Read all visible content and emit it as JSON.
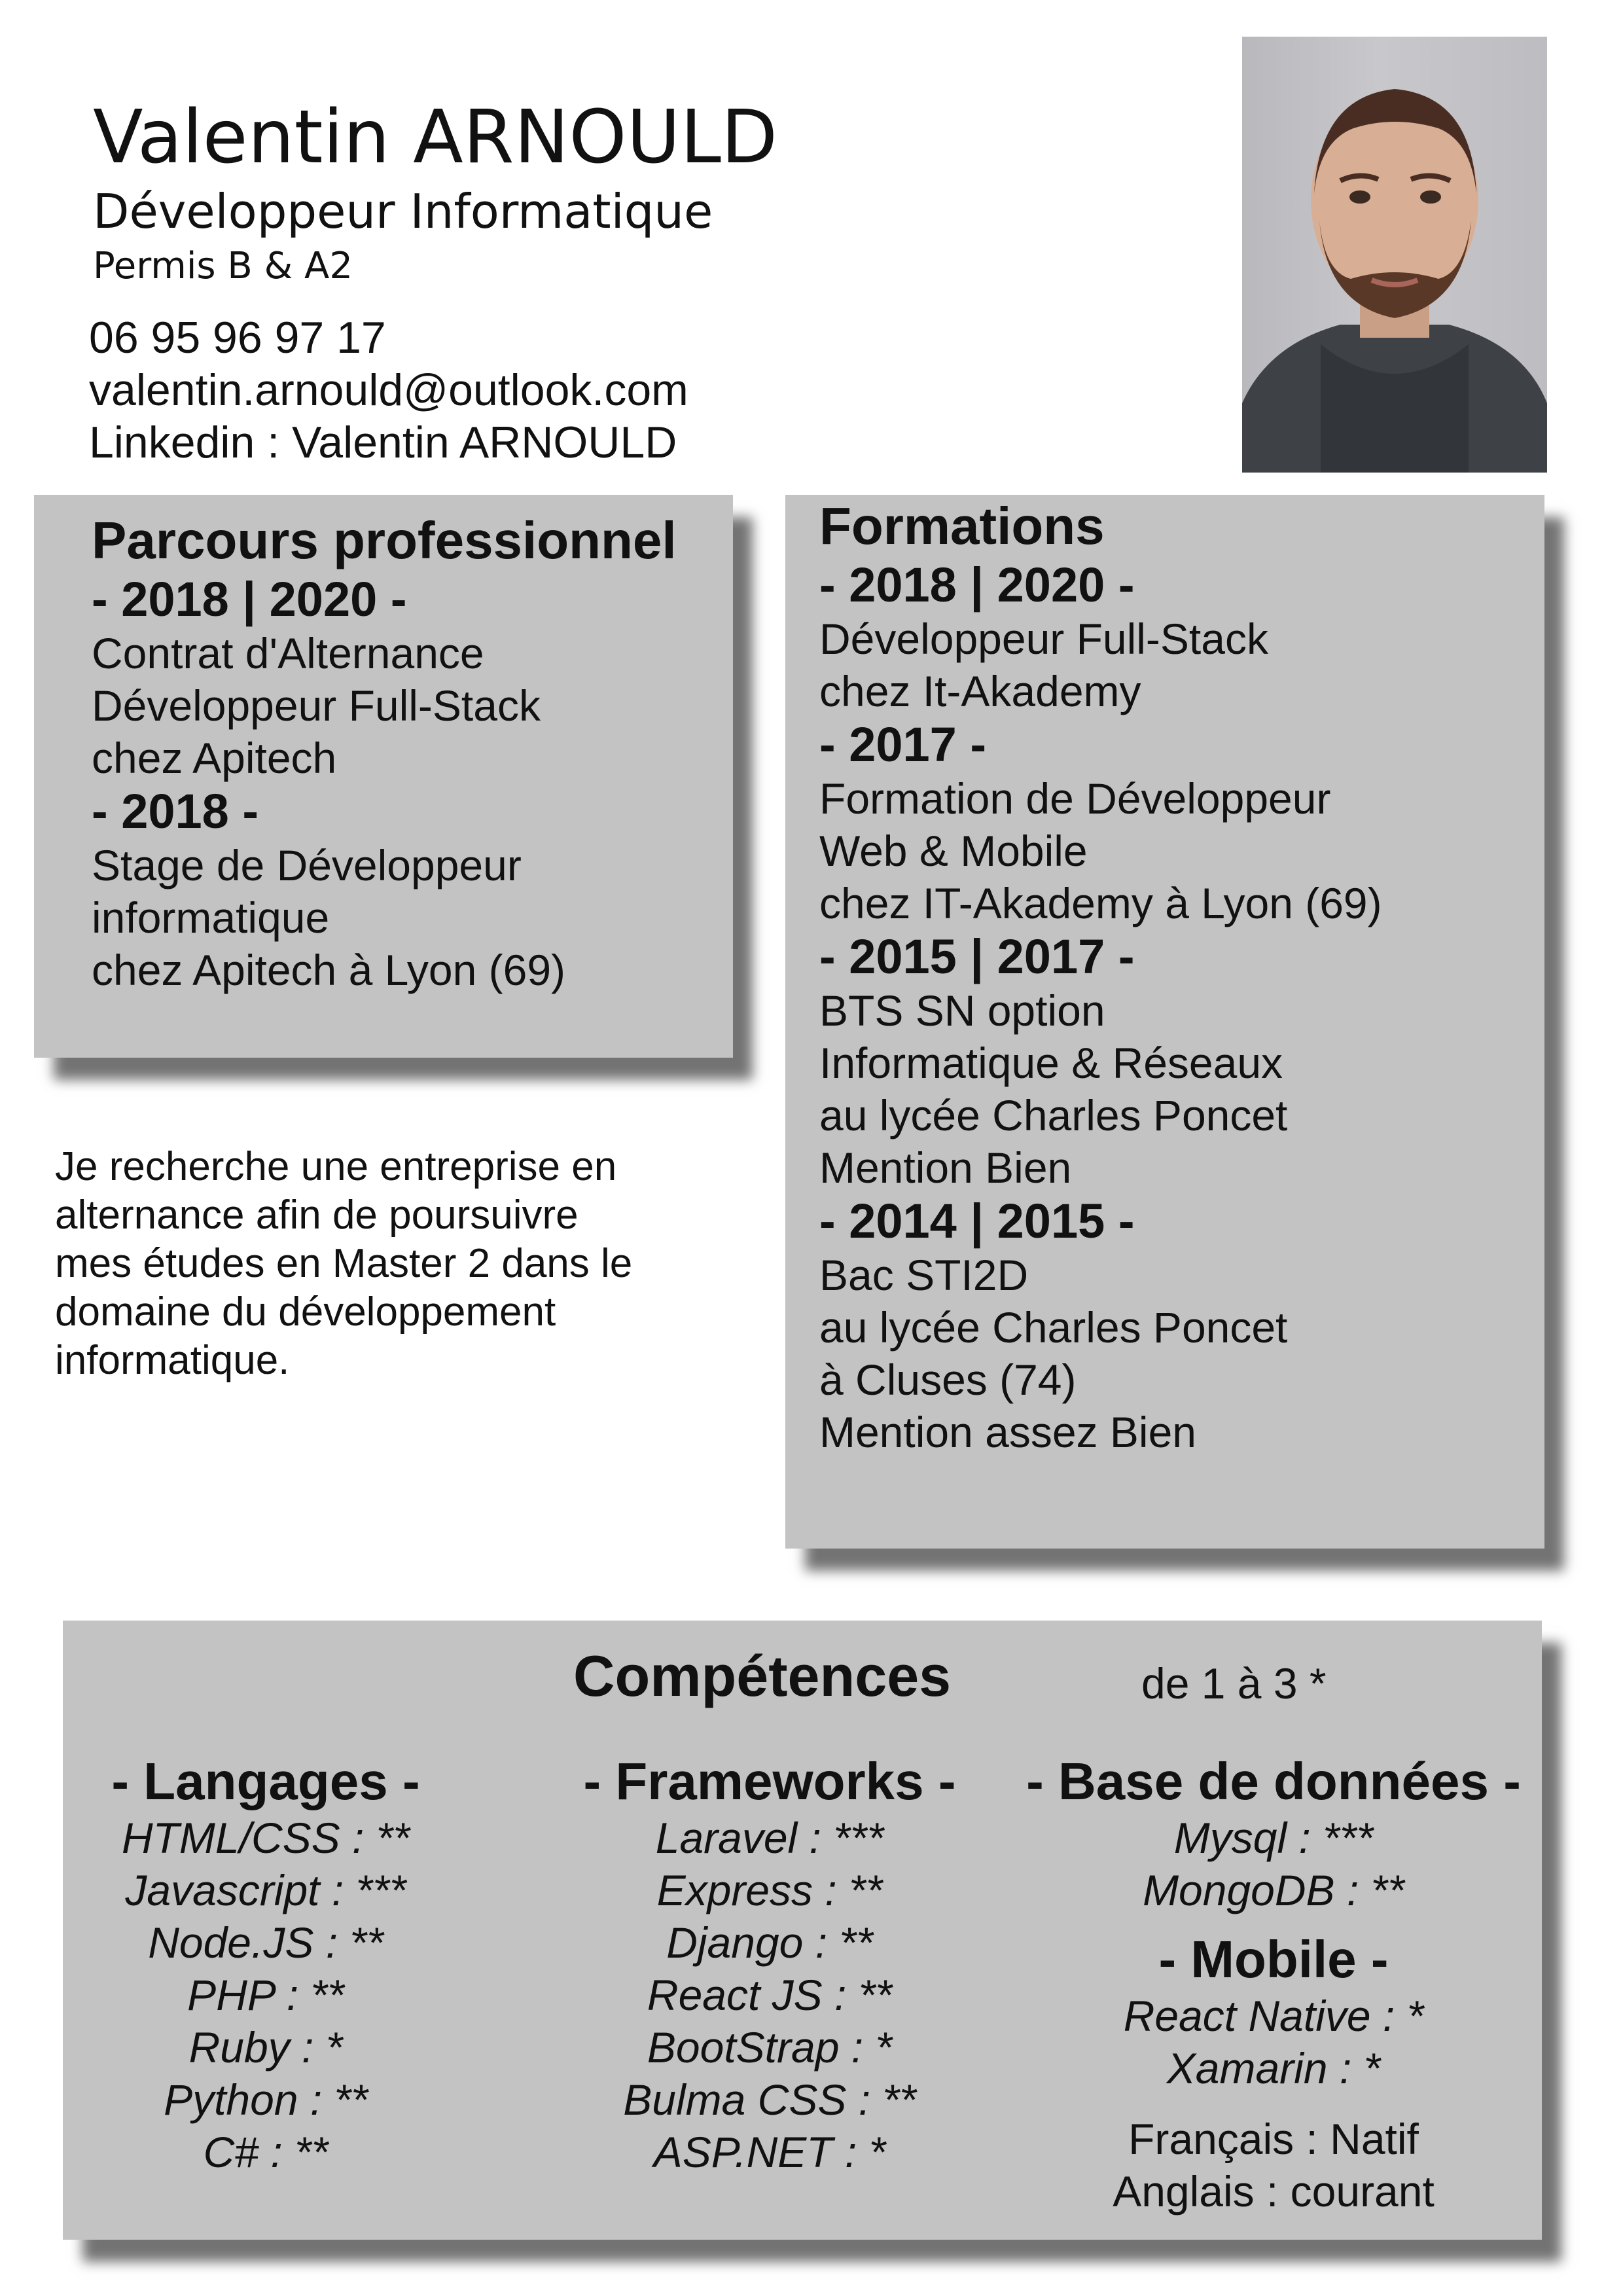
{
  "header": {
    "name": "Valentin ARNOULD",
    "role": "Développeur Informatique",
    "permis": "Permis B & A2",
    "phone": "06 95 96 97 17",
    "email": "valentin.arnould@outlook.com",
    "linkedin": "Linkedin : Valentin ARNOULD"
  },
  "parcours": {
    "title": "Parcours professionnel",
    "entries": [
      {
        "years": "- 2018 | 2020 -",
        "lines": [
          "Contrat d'Alternance",
          "Développeur Full-Stack",
          "chez Apitech"
        ]
      },
      {
        "years": "- 2018 -",
        "lines": [
          "Stage de Développeur",
          "informatique",
          "chez Apitech à Lyon (69)"
        ]
      }
    ]
  },
  "formations": {
    "title": "Formations",
    "entries": [
      {
        "years": "- 2018 | 2020 -",
        "lines": [
          "Développeur Full-Stack",
          "chez It-Akademy"
        ]
      },
      {
        "years": "- 2017 -",
        "lines": [
          "Formation de Développeur",
          "Web & Mobile",
          "chez IT-Akademy à Lyon (69)"
        ]
      },
      {
        "years": "- 2015 | 2017 -",
        "lines": [
          "BTS SN option",
          "Informatique & Réseaux",
          "au lycée Charles Poncet",
          "Mention Bien"
        ]
      },
      {
        "years": "- 2014 | 2015 -",
        "lines": [
          "Bac STI2D",
          "au lycée Charles Poncet",
          "à Cluses (74)",
          "Mention assez Bien"
        ]
      }
    ]
  },
  "objective": {
    "lines": [
      "Je recherche une entreprise en",
      "alternance afin de poursuivre",
      "mes études en Master 2 dans le",
      "domaine du développement",
      "informatique."
    ]
  },
  "competences": {
    "title": "Compétences",
    "scale": "de 1 à 3 *",
    "langages": {
      "title": "- Langages -",
      "items": [
        "HTML/CSS : **",
        "Javascript : ***",
        "Node.JS : **",
        "PHP : **",
        "Ruby : *",
        "Python : **",
        "C# : **"
      ]
    },
    "frameworks": {
      "title": "- Frameworks -",
      "items": [
        "Laravel : ***",
        "Express : **",
        "Django : **",
        "React JS : **",
        "BootStrap : *",
        "Bulma CSS : **",
        "ASP.NET : *"
      ]
    },
    "databases": {
      "title": "- Base de données -",
      "items": [
        "Mysql : ***",
        "MongoDB : **"
      ]
    },
    "mobile": {
      "title": "- Mobile -",
      "items": [
        "React Native : *",
        "Xamarin : *"
      ]
    },
    "languages": [
      "Français : Natif",
      "Anglais : courant"
    ]
  },
  "colors": {
    "box": "#c3c3c3",
    "text": "#111111"
  },
  "icons": {
    "photo": "portrait-photo"
  }
}
